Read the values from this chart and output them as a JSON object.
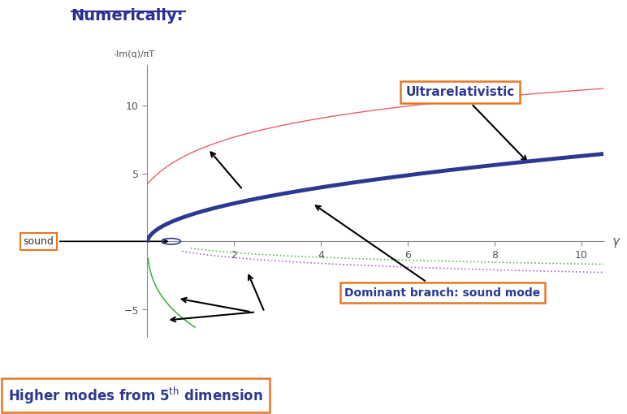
{
  "title": "Numerically:",
  "ylabel": "-Im(q)/πT",
  "xlabel": "γ",
  "xlim": [
    0,
    10.5
  ],
  "ylim": [
    -7,
    13
  ],
  "xticks": [
    2,
    4,
    6,
    8,
    10
  ],
  "yticks": [
    -5,
    5,
    10
  ],
  "background_color": "#ffffff",
  "curve_dominant_color": "#2b3990",
  "curve_dominant_lw": 3.5,
  "curve_pink_color": "#e8606a",
  "curve_pink_lw": 1.0,
  "curve_green_color": "#4daf4a",
  "curve_purple_color": "#9c5eb5",
  "curve_dashed_lw": 1.2,
  "box_color": "#e87722",
  "annotation_color": "#2b3990",
  "sound_label": "sound",
  "ultrarelativistic_label": "Ultrarelativistic",
  "dominant_label": "Dominant branch: sound mode",
  "higher_label": "Higher modes from 5$^{\\rm th}$ dimension"
}
